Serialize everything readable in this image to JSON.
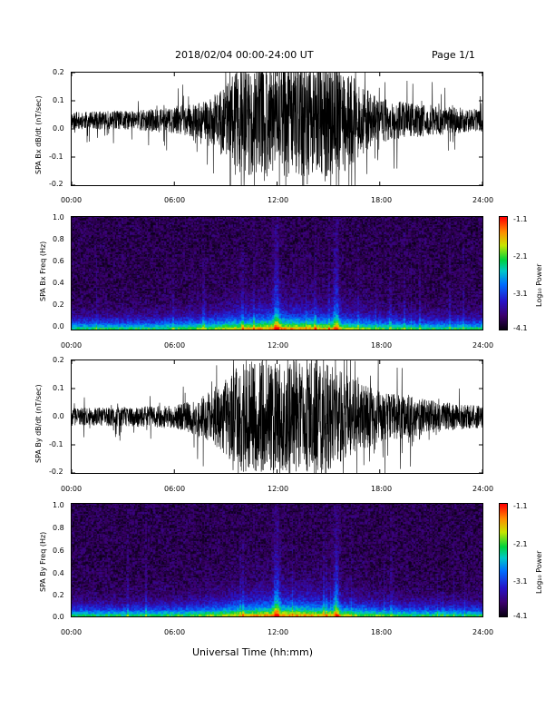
{
  "header": {
    "date_range": "2018/02/04  00:00-24:00 UT",
    "page": "Page 1/1"
  },
  "x_tick_labels": [
    "00:00",
    "06:00",
    "12:00",
    "18:00",
    "24:00"
  ],
  "x_axis_title": "Universal Time (hh:mm)",
  "colorbar": {
    "label": "Log₁₀ Power",
    "ticks": [
      "-1.1",
      "-2.1",
      "-3.1",
      "-4.1"
    ]
  },
  "chart_data": [
    {
      "type": "line",
      "ylabel": "SPA Bx dB/dt (nT/sec)",
      "xlim": [
        0,
        24
      ],
      "ylim": [
        -0.2,
        0.2
      ],
      "y_tick_labels": [
        "0.2",
        "0.1",
        "0.0",
        "-0.1",
        "-0.2"
      ],
      "envelope_hours": [
        0,
        3,
        6,
        8,
        9,
        10,
        11,
        12,
        13,
        14,
        15,
        16,
        17,
        18,
        20,
        22,
        24
      ],
      "envelope_amplitude": [
        0.03,
        0.035,
        0.045,
        0.07,
        0.13,
        0.2,
        0.2,
        0.2,
        0.2,
        0.2,
        0.2,
        0.18,
        0.12,
        0.08,
        0.06,
        0.05,
        0.04
      ],
      "baseline": 0.03
    },
    {
      "type": "heatmap",
      "ylabel": "SPA Bx Freq (Hz)",
      "xlim": [
        0,
        24
      ],
      "ylim": [
        0.0,
        1.0
      ],
      "y_tick_labels": [
        "1.0",
        "0.8",
        "0.6",
        "0.4",
        "0.2",
        "0.0"
      ],
      "color_range": [
        -4.1,
        -1.1
      ],
      "bright_bands_hours": [
        12.0,
        15.5
      ]
    },
    {
      "type": "line",
      "ylabel": "SPA By dB/dt (nT/sec)",
      "xlim": [
        0,
        24
      ],
      "ylim": [
        -0.2,
        0.2
      ],
      "y_tick_labels": [
        "0.2",
        "0.1",
        "0.0",
        "-0.1",
        "-0.2"
      ],
      "envelope_hours": [
        0,
        3,
        6,
        7,
        8,
        9,
        10,
        11,
        12,
        13,
        14,
        15,
        16,
        17,
        18,
        20,
        22,
        24
      ],
      "envelope_amplitude": [
        0.03,
        0.035,
        0.04,
        0.06,
        0.09,
        0.14,
        0.2,
        0.2,
        0.2,
        0.2,
        0.2,
        0.19,
        0.15,
        0.12,
        0.09,
        0.07,
        0.05,
        0.04
      ],
      "baseline": 0.0
    },
    {
      "type": "heatmap",
      "ylabel": "SPA By Freq (Hz)",
      "xlim": [
        0,
        24
      ],
      "ylim": [
        0.0,
        1.0
      ],
      "y_tick_labels": [
        "1.0",
        "0.8",
        "0.6",
        "0.4",
        "0.2",
        "0.0"
      ],
      "color_range": [
        -4.1,
        -1.1
      ],
      "bright_bands_hours": [
        12.0,
        15.5
      ]
    }
  ]
}
